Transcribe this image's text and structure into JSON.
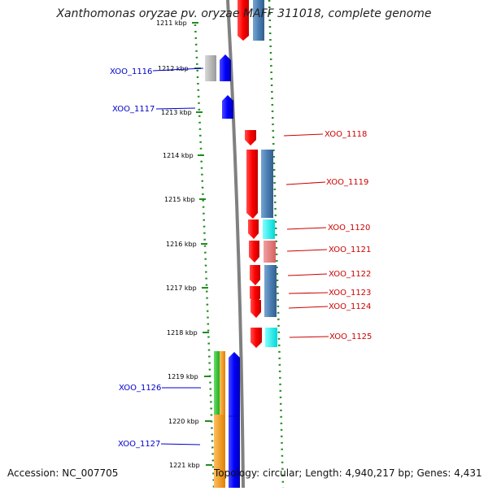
{
  "title": "Xanthomonas oryzae pv. oryzae MAFF 311018, complete genome",
  "accession_text": "Accession: NC_007705",
  "summary_text": "Topology: circular; Length: 4,940,217 bp; Genes: 4,431",
  "scale_labels": [
    "1211 kbp",
    "1212 kbp",
    "1213 kbp",
    "1214 kbp",
    "1215 kbp",
    "1216 kbp",
    "1217 kbp",
    "1218 kbp",
    "1219 kbp",
    "1220 kbp",
    "1221 kbp"
  ],
  "gene_labels": {
    "XOO_1116": "XOO_1116",
    "XOO_1117": "XOO_1117",
    "XOO_1118": "XOO_1118",
    "XOO_1119": "XOO_1119",
    "XOO_1120": "XOO_1120",
    "XOO_1121": "XOO_1121",
    "XOO_1122": "XOO_1122",
    "XOO_1123": "XOO_1123",
    "XOO_1124": "XOO_1124",
    "XOO_1125": "XOO_1125",
    "XOO_1126": "XOO_1126",
    "XOO_1127": "XOO_1127"
  },
  "colors": {
    "forward_gene": "#ff0000",
    "reverse_gene": "#0000ff",
    "forward_label": "#cc0000",
    "reverse_label": "#0000cc",
    "steel_blue": "#4a7fb5",
    "cyan": "#00ffff",
    "pink": "#e87878",
    "gray": "#b0b0b0",
    "green": "#33cc33",
    "orange": "#ff9900",
    "backbone": "#808080",
    "tick_green": "#228b22"
  }
}
